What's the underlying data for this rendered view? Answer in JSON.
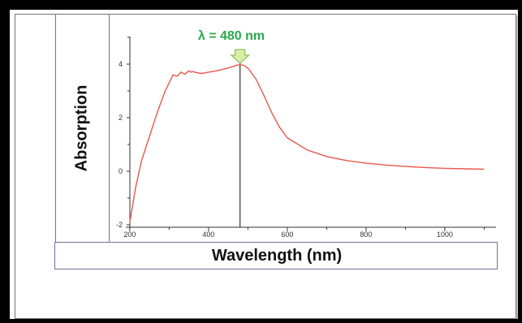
{
  "chart_data": {
    "type": "line",
    "title": "",
    "xlabel": "Wavelength (nm)",
    "ylabel": "Absorption",
    "xlim": [
      190,
      1130
    ],
    "ylim": [
      -2,
      5
    ],
    "x_ticks": [
      200,
      400,
      600,
      800,
      1000
    ],
    "y_ticks": [
      -2,
      0,
      2,
      4
    ],
    "grid": false,
    "series": [
      {
        "color": "#e8574f",
        "x": [
          200,
          215,
          230,
          250,
          270,
          290,
          310,
          320,
          330,
          340,
          350,
          355,
          360,
          370,
          380,
          390,
          400,
          420,
          440,
          460,
          470,
          480,
          490,
          500,
          520,
          540,
          560,
          580,
          600,
          650,
          700,
          750,
          800,
          850,
          900,
          950,
          1000,
          1050,
          1100
        ],
        "y": [
          -1.9,
          -0.6,
          0.4,
          1.3,
          2.2,
          3.0,
          3.6,
          3.55,
          3.7,
          3.62,
          3.75,
          3.7,
          3.72,
          3.68,
          3.65,
          3.67,
          3.7,
          3.75,
          3.82,
          3.9,
          3.95,
          3.98,
          3.95,
          3.85,
          3.45,
          2.85,
          2.2,
          1.65,
          1.25,
          0.8,
          0.55,
          0.4,
          0.3,
          0.23,
          0.18,
          0.14,
          0.11,
          0.09,
          0.08
        ]
      }
    ],
    "annotations": [
      {
        "text": "λ = 480 nm",
        "x": 480,
        "color": "#2aa84a",
        "marker": "down-arrow"
      }
    ],
    "vline": {
      "x": 480,
      "color": "#333333"
    }
  }
}
